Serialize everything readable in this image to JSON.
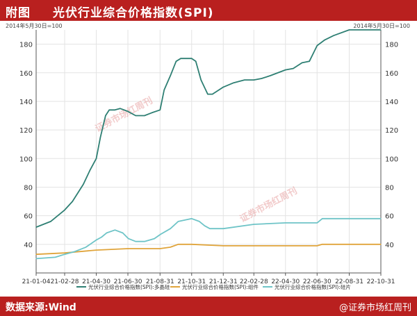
{
  "header": {
    "tag": "附图",
    "title": "光伏行业综合价格指数(SPI)"
  },
  "footer": {
    "source": "数据来源:Wind",
    "logo": "@证券市场红周刊"
  },
  "watermark": "证券市场红周刊",
  "colors": {
    "header_bg": "#b9201f",
    "series1": "#2e7f73",
    "series2": "#e0a43a",
    "series3": "#6ec4c7",
    "grid": "#e3e3e3"
  },
  "chart_data": {
    "type": "line",
    "title": "光伏行业综合价格指数(SPI)",
    "left_unit": "2014年5月30日=100",
    "right_unit": "2014年5月30日=100",
    "ylim": [
      20,
      190
    ],
    "yticks": [
      40,
      60,
      80,
      100,
      120,
      140,
      160,
      180
    ],
    "grid": true,
    "legend_position": "bottom",
    "x_tick_labels": [
      "21-01-04",
      "21-02-28",
      "21-04-30",
      "21-06-30",
      "21-08-31",
      "21-10-31",
      "21-12-31",
      "22-02-28",
      "22-04-30",
      "22-06-30",
      "22-08-31",
      "22-10-31"
    ],
    "x_tick_dates": [
      "2021-01-04",
      "2021-02-28",
      "2021-04-30",
      "2021-06-30",
      "2021-08-31",
      "2021-10-31",
      "2021-12-31",
      "2022-02-28",
      "2022-04-30",
      "2022-06-30",
      "2022-08-31",
      "2022-10-31"
    ],
    "x_range": [
      "2021-01-04",
      "2022-10-31"
    ],
    "series": [
      {
        "name": "光伏行业综合价格指数(SPI):多晶硅",
        "color": "#2e7f73",
        "points": [
          [
            "2021-01-04",
            52
          ],
          [
            "2021-02-01",
            56
          ],
          [
            "2021-02-28",
            64
          ],
          [
            "2021-03-15",
            70
          ],
          [
            "2021-04-05",
            82
          ],
          [
            "2021-04-18",
            92
          ],
          [
            "2021-04-30",
            100
          ],
          [
            "2021-05-08",
            115
          ],
          [
            "2021-05-18",
            130
          ],
          [
            "2021-05-25",
            134
          ],
          [
            "2021-06-05",
            134
          ],
          [
            "2021-06-15",
            135
          ],
          [
            "2021-06-30",
            133
          ],
          [
            "2021-07-15",
            130
          ],
          [
            "2021-08-01",
            130
          ],
          [
            "2021-08-15",
            132
          ],
          [
            "2021-08-31",
            134
          ],
          [
            "2021-09-08",
            148
          ],
          [
            "2021-09-20",
            158
          ],
          [
            "2021-10-01",
            168
          ],
          [
            "2021-10-10",
            170
          ],
          [
            "2021-10-31",
            170
          ],
          [
            "2021-11-08",
            168
          ],
          [
            "2021-11-18",
            155
          ],
          [
            "2021-12-01",
            145
          ],
          [
            "2021-12-10",
            145
          ],
          [
            "2021-12-31",
            150
          ],
          [
            "2022-01-20",
            153
          ],
          [
            "2022-02-10",
            155
          ],
          [
            "2022-02-28",
            155
          ],
          [
            "2022-03-15",
            156
          ],
          [
            "2022-04-01",
            158
          ],
          [
            "2022-04-30",
            162
          ],
          [
            "2022-05-15",
            163
          ],
          [
            "2022-06-01",
            167
          ],
          [
            "2022-06-15",
            168
          ],
          [
            "2022-06-30",
            179
          ],
          [
            "2022-07-15",
            183
          ],
          [
            "2022-08-01",
            186
          ],
          [
            "2022-08-31",
            190
          ],
          [
            "2022-10-31",
            190
          ]
        ]
      },
      {
        "name": "光伏行业综合价格指数(SPI):组件",
        "color": "#e0a43a",
        "points": [
          [
            "2021-01-04",
            33
          ],
          [
            "2021-02-28",
            34
          ],
          [
            "2021-04-30",
            36
          ],
          [
            "2021-06-30",
            37
          ],
          [
            "2021-08-31",
            37
          ],
          [
            "2021-09-20",
            38
          ],
          [
            "2021-10-05",
            40
          ],
          [
            "2021-10-31",
            40
          ],
          [
            "2021-12-31",
            39
          ],
          [
            "2022-02-28",
            39
          ],
          [
            "2022-04-30",
            39
          ],
          [
            "2022-06-30",
            39
          ],
          [
            "2022-07-10",
            40
          ],
          [
            "2022-08-31",
            40
          ],
          [
            "2022-10-31",
            40
          ]
        ]
      },
      {
        "name": "光伏行业综合价格指数(SPI):硅片",
        "color": "#6ec4c7",
        "points": [
          [
            "2021-01-04",
            30
          ],
          [
            "2021-02-10",
            31
          ],
          [
            "2021-02-28",
            33
          ],
          [
            "2021-03-20",
            35
          ],
          [
            "2021-04-10",
            38
          ],
          [
            "2021-04-30",
            43
          ],
          [
            "2021-05-10",
            45
          ],
          [
            "2021-05-20",
            48
          ],
          [
            "2021-06-05",
            50
          ],
          [
            "2021-06-20",
            48
          ],
          [
            "2021-07-01",
            44
          ],
          [
            "2021-07-15",
            42
          ],
          [
            "2021-08-01",
            42
          ],
          [
            "2021-08-20",
            44
          ],
          [
            "2021-09-01",
            47
          ],
          [
            "2021-09-20",
            51
          ],
          [
            "2021-10-05",
            56
          ],
          [
            "2021-10-31",
            58
          ],
          [
            "2021-11-15",
            56
          ],
          [
            "2021-11-25",
            53
          ],
          [
            "2021-12-05",
            51
          ],
          [
            "2021-12-31",
            51
          ],
          [
            "2022-02-28",
            54
          ],
          [
            "2022-04-30",
            55
          ],
          [
            "2022-06-30",
            55
          ],
          [
            "2022-07-10",
            58
          ],
          [
            "2022-08-31",
            58
          ],
          [
            "2022-10-31",
            58
          ]
        ]
      }
    ]
  }
}
